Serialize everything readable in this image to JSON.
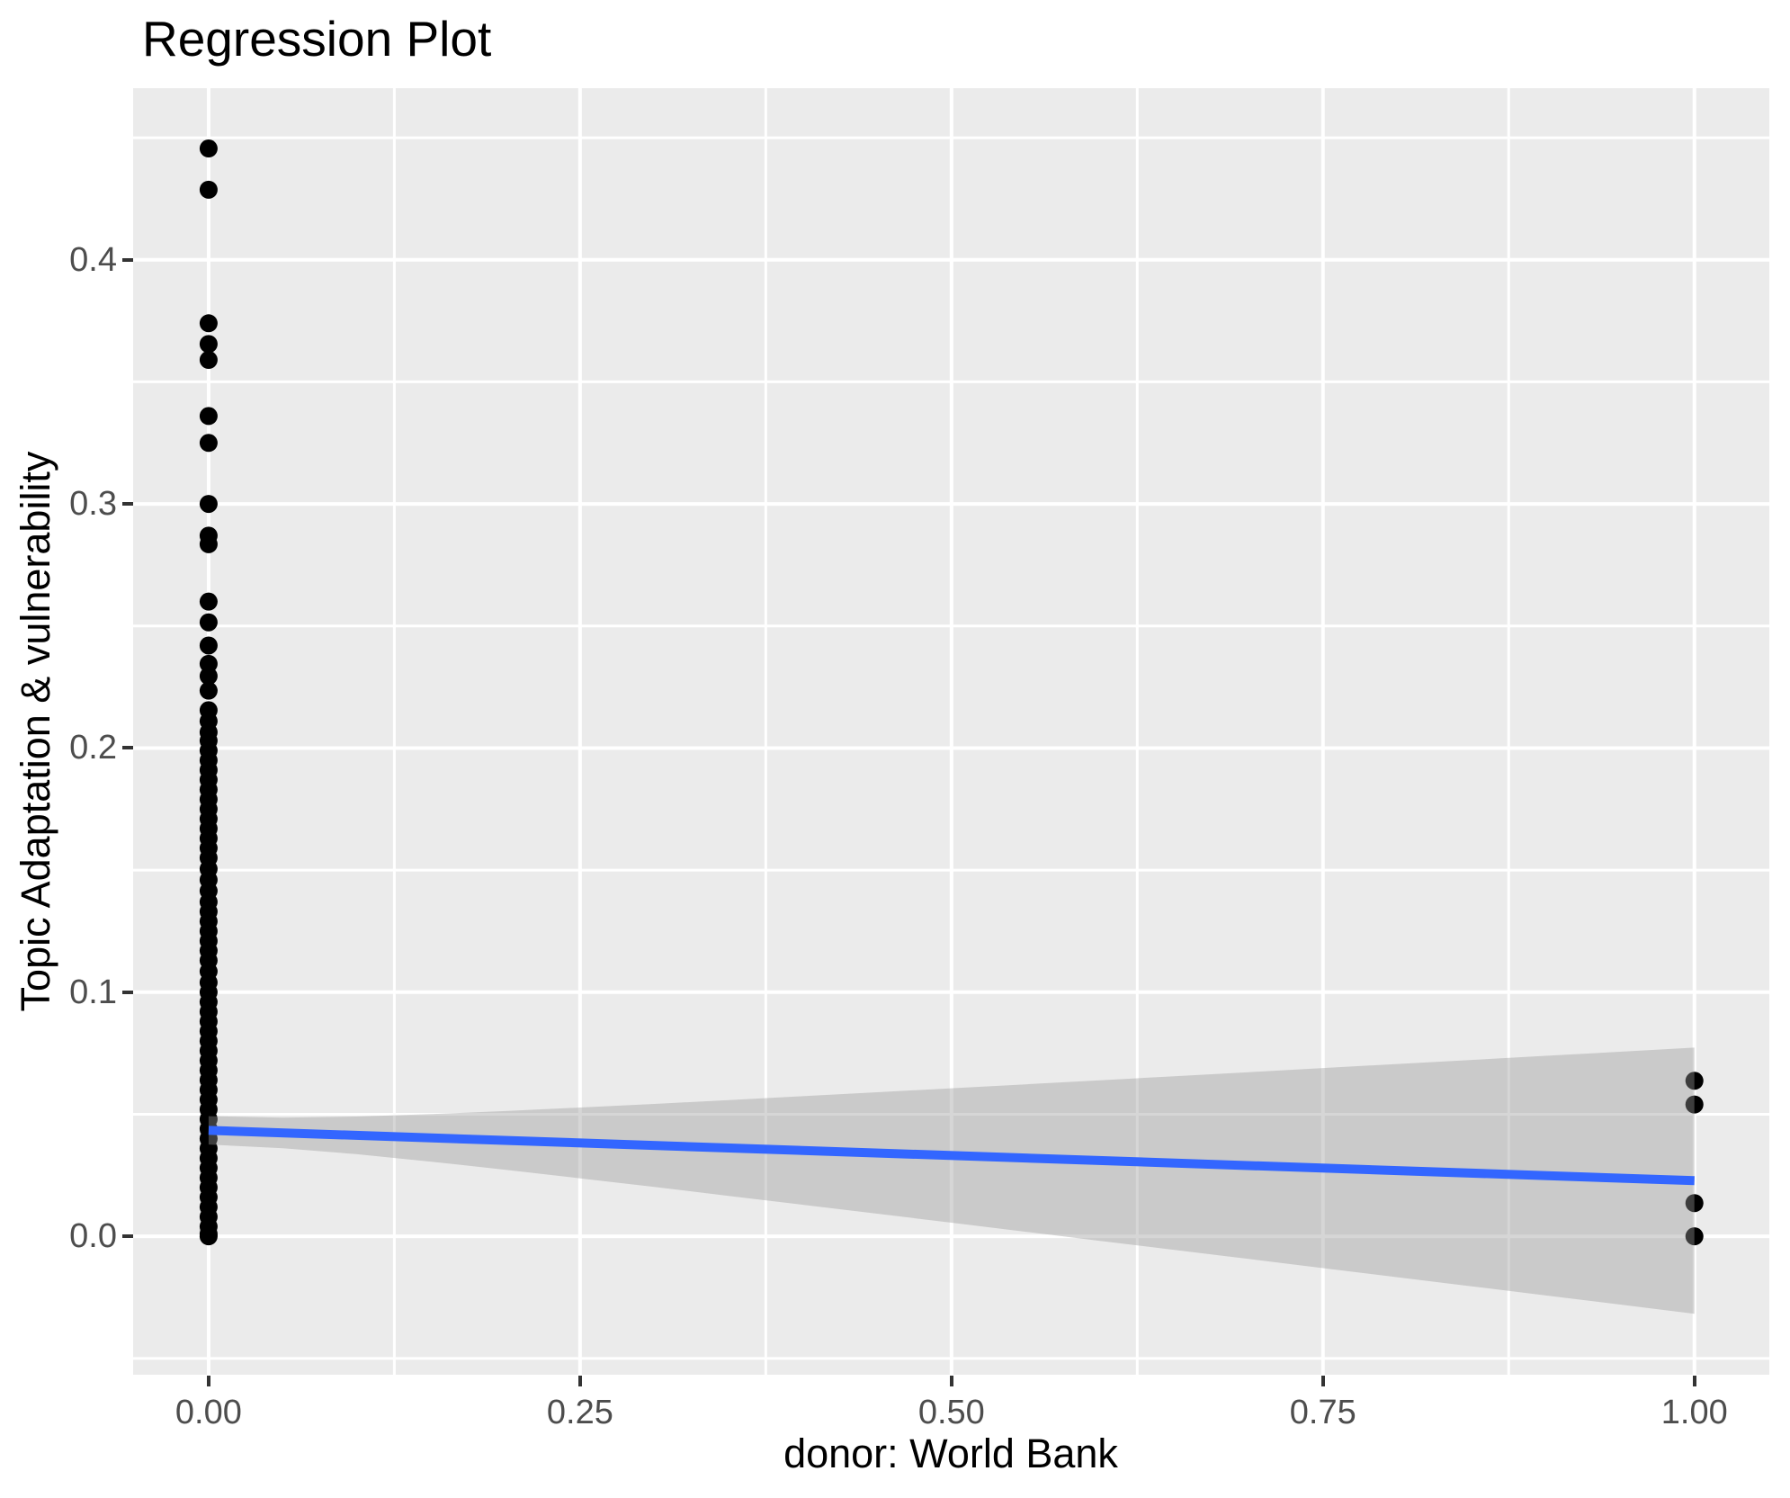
{
  "chart_data": {
    "type": "scatter",
    "title": "Regression Plot",
    "xlabel": "donor: World Bank",
    "ylabel": "Topic Adaptation & vulnerability",
    "legend": "none",
    "grid": true,
    "xlim": [
      -0.0508,
      1.0504
    ],
    "ylim": [
      -0.0567,
      0.4703
    ],
    "x_ticks": {
      "values": [
        0,
        0.25,
        0.5,
        0.75,
        1
      ],
      "labels": [
        "0.00",
        "0.25",
        "0.50",
        "0.75",
        "1.00"
      ]
    },
    "y_ticks": {
      "values": [
        0,
        0.1,
        0.2,
        0.3,
        0.4
      ],
      "labels": [
        "0.0",
        "0.1",
        "0.2",
        "0.3",
        "0.4"
      ]
    },
    "x_minor_gridlines": [
      0.125,
      0.375,
      0.625,
      0.875
    ],
    "y_minor_gridlines": [
      -0.05,
      0.05,
      0.15,
      0.25,
      0.35,
      0.45
    ],
    "series": [
      {
        "name": "donor: World Bank = 0",
        "x": 0,
        "y": [
          0.4456,
          0.4287,
          0.374,
          0.3655,
          0.359,
          0.336,
          0.325,
          0.3,
          0.287,
          0.2835,
          0.26,
          0.2515,
          0.242,
          0.2345,
          0.2295,
          0.2235,
          0.2155,
          0.211,
          0.2065,
          0.203,
          0.199,
          0.195,
          0.191,
          0.187,
          0.183,
          0.179,
          0.175,
          0.171,
          0.167,
          0.163,
          0.159,
          0.155,
          0.1505,
          0.146,
          0.1415,
          0.137,
          0.133,
          0.129,
          0.125,
          0.121,
          0.117,
          0.113,
          0.1085,
          0.104,
          0.1,
          0.096,
          0.092,
          0.088,
          0.084,
          0.08,
          0.076,
          0.072,
          0.068,
          0.064,
          0.06,
          0.056,
          0.052,
          0.048,
          0.044,
          0.04,
          0.036,
          0.032,
          0.028,
          0.024,
          0.02,
          0.016,
          0.012,
          0.008,
          0.004,
          0.001,
          0.0
        ]
      },
      {
        "name": "donor: World Bank = 1",
        "x": 1,
        "y": [
          0.0637,
          0.054,
          0.0136,
          0.0
        ]
      }
    ],
    "regression_line": {
      "intercept": 0.0434,
      "slope": -0.0206,
      "y_at_x0": 0.0434,
      "y_at_x1": 0.0228
    },
    "confidence_band": {
      "half_width_at_x0": 0.0058,
      "half_width_at_x1": 0.0545,
      "x_mean": 0.0065
    },
    "colors": {
      "panel_background": "#EBEBEB",
      "gridline": "#FFFFFF",
      "point": "#000000",
      "regression_line": "#3366FF",
      "band_fill": "#999999",
      "band_opacity": 0.4,
      "axis_text": "#4D4D4D",
      "tick_mark": "#333333",
      "title_text": "#000000"
    }
  }
}
